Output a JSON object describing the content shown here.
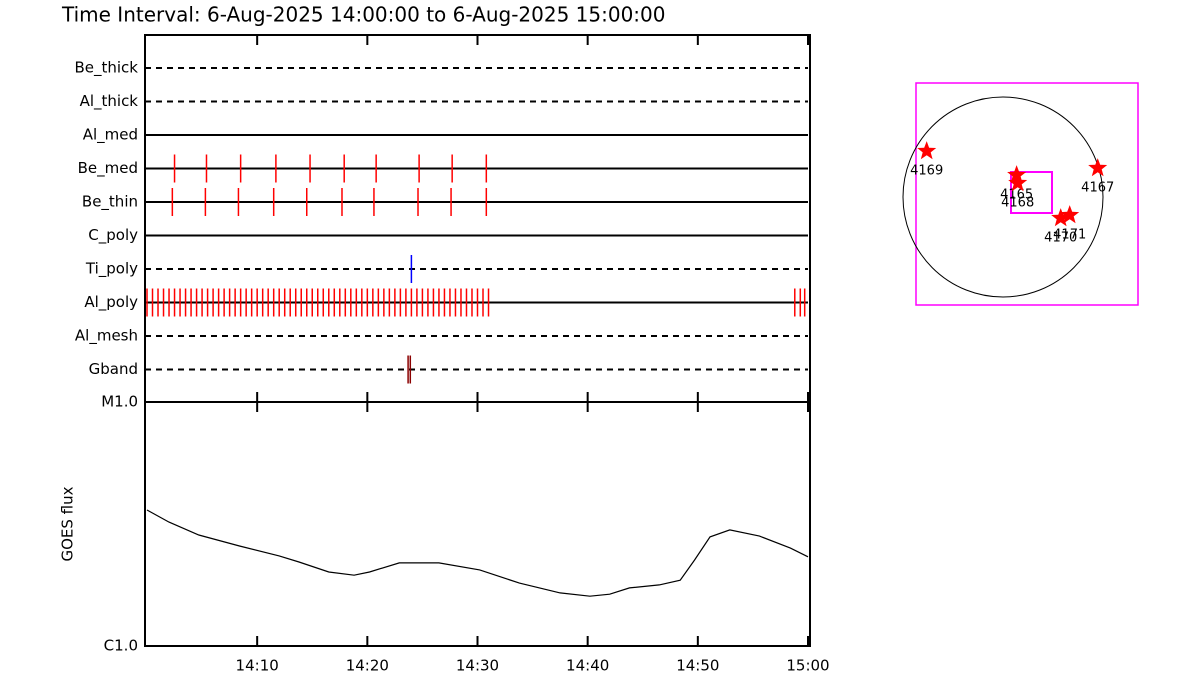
{
  "title": "Time Interval:  6-Aug-2025 14:00:00 to  6-Aug-2025 15:00:00",
  "chart_data": [
    {
      "type": "event",
      "xlim": [
        0,
        60
      ],
      "rows": [
        {
          "name": "Be_thick",
          "style": "dashed",
          "color": "#ff0000",
          "times": []
        },
        {
          "name": "Al_thick",
          "style": "dashed",
          "color": "#ff0000",
          "times": []
        },
        {
          "name": "Al_med",
          "style": "solid",
          "color": "#ff0000",
          "times": []
        },
        {
          "name": "Be_med",
          "style": "solid",
          "color": "#ff0000",
          "times": [
            2.5,
            5.4,
            8.5,
            11.7,
            14.8,
            17.9,
            20.8,
            24.7,
            27.7,
            30.8
          ]
        },
        {
          "name": "Be_thin",
          "style": "solid",
          "color": "#ff0000",
          "times": [
            2.3,
            5.3,
            8.3,
            11.5,
            14.5,
            17.7,
            20.6,
            24.6,
            27.6,
            30.8
          ]
        },
        {
          "name": "C_poly",
          "style": "solid",
          "color": "#ff0000",
          "times": []
        },
        {
          "name": "Ti_poly",
          "style": "dashed",
          "color": "#0000ff",
          "times": [
            24.0
          ]
        },
        {
          "name": "Al_poly",
          "style": "solid",
          "color": "#ff0000",
          "times": [
            0,
            0.5,
            1,
            1.5,
            2,
            2.5,
            3,
            3.5,
            4,
            4.5,
            5,
            5.5,
            6,
            6.5,
            7,
            7.5,
            8,
            8.5,
            9,
            9.5,
            10,
            10.5,
            11,
            11.5,
            12,
            12.5,
            13,
            13.5,
            14,
            14.5,
            15,
            15.5,
            16,
            16.5,
            17,
            17.5,
            18,
            18.5,
            19,
            19.5,
            20,
            20.5,
            21,
            21.5,
            22,
            22.5,
            23,
            23.5,
            24,
            24.5,
            25,
            25.5,
            26,
            26.5,
            27,
            27.5,
            28,
            28.5,
            29,
            29.5,
            30,
            30.5,
            31,
            58.8,
            59.3,
            59.7
          ]
        },
        {
          "name": "Al_mesh",
          "style": "dashed",
          "color": "#ff0000",
          "times": []
        },
        {
          "name": "Gband",
          "style": "dashed",
          "color": "#8b0000",
          "times": [
            23.7,
            23.9
          ]
        }
      ]
    },
    {
      "type": "line",
      "ylabel": "GOES flux",
      "log": true,
      "color": "#000000",
      "xlim": [
        0,
        60
      ],
      "ylim": [
        1e-06,
        1e-05
      ],
      "yticks": [
        {
          "value": 1e-05,
          "label": "M1.0"
        },
        {
          "value": 1e-06,
          "label": "C1.0"
        }
      ],
      "xticks": [
        {
          "value": 10,
          "label": "14:10"
        },
        {
          "value": 20,
          "label": "14:20"
        },
        {
          "value": 30,
          "label": "14:30"
        },
        {
          "value": 40,
          "label": "14:40"
        },
        {
          "value": 50,
          "label": "14:50"
        },
        {
          "value": 60,
          "label": "15:00"
        }
      ],
      "x": [
        0,
        2.0,
        4.7,
        8.4,
        12.0,
        13.8,
        16.5,
        18.8,
        20.2,
        22.9,
        26.5,
        30.2,
        33.8,
        37.5,
        40.2,
        42.0,
        43.8,
        46.5,
        48.4,
        49.7,
        51.1,
        52.9,
        55.6,
        58.4,
        60
      ],
      "values": [
        3.61e-06,
        3.22e-06,
        2.85e-06,
        2.57e-06,
        2.34e-06,
        2.21e-06,
        2.01e-06,
        1.95e-06,
        2.01e-06,
        2.19e-06,
        2.19e-06,
        2.05e-06,
        1.81e-06,
        1.65e-06,
        1.6e-06,
        1.63e-06,
        1.73e-06,
        1.78e-06,
        1.86e-06,
        2.25e-06,
        2.8e-06,
        2.99e-06,
        2.82e-06,
        2.52e-06,
        2.32e-06
      ]
    },
    {
      "type": "map",
      "color": "#ff0000",
      "xlim": [
        -820,
        1280
      ],
      "ylim": [
        -1030,
        1070
      ],
      "regions": [
        {
          "label": "4169",
          "x": -719,
          "y": 426
        },
        {
          "label": "4165",
          "x": 132,
          "y": 199
        },
        {
          "label": "4168",
          "x": 142,
          "y": 123
        },
        {
          "label": "4167",
          "x": 899,
          "y": 265
        },
        {
          "label": "4170",
          "x": 549,
          "y": -208
        },
        {
          "label": "4171",
          "x": 634,
          "y": -180
        }
      ]
    }
  ]
}
